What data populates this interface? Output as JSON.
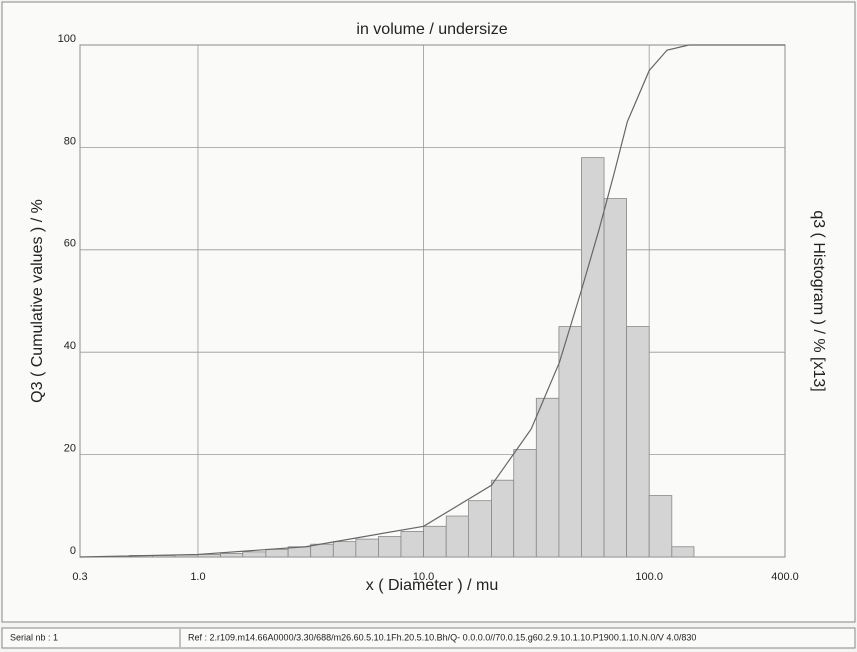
{
  "chart_data": {
    "type": "histogram",
    "title": "in volume / undersize",
    "x_label": "x ( Diameter ) / mu",
    "y_label": "Q3 ( Cumulative values ) / %",
    "y2_label": "q3 ( Histogram ) / % [x13]",
    "log_x": true,
    "grid": true,
    "xlim": [
      0.3,
      400
    ],
    "xticks": [
      0.3,
      {
        "value": 1,
        "label": "1.0"
      },
      {
        "value": 10,
        "label": "10.0"
      },
      {
        "value": 100,
        "label": "100.0"
      },
      {
        "value": 400,
        "label": "400.0"
      }
    ],
    "ylim": [
      0,
      100
    ],
    "yticks": [
      0,
      20,
      40,
      60,
      80,
      100
    ],
    "color": "#d4d4d4",
    "bins": [
      0.5,
      0.63,
      0.79,
      1,
      1.26,
      1.58,
      2,
      2.51,
      3.16,
      3.98,
      5.01,
      6.31,
      7.94,
      10,
      12.6,
      15.8,
      20,
      25.1,
      31.6,
      39.8,
      50.1,
      63.1,
      79.4,
      100,
      126,
      158
    ],
    "counts": [
      0.3,
      0.3,
      0.4,
      0.5,
      0.7,
      1,
      1.5,
      2,
      2.5,
      3,
      3.5,
      4,
      5,
      6,
      8,
      11,
      15,
      21,
      31,
      45,
      78,
      70,
      45,
      12,
      2
    ],
    "cumulative": {
      "color": "#666666",
      "x": [
        0.3,
        1,
        3,
        10,
        20,
        30,
        40,
        50,
        60,
        70,
        80,
        100,
        120,
        150,
        400
      ],
      "values": [
        0,
        0.5,
        2,
        6,
        14,
        25,
        38,
        52,
        64,
        75,
        85,
        95,
        99,
        100,
        100
      ]
    },
    "footer": {
      "serial": "Serial nb : 1",
      "ref": "Ref : 2.r109.m14.66A0000/3.30/688/m26.60.5.10.1Fh.20.5.10.Bh/Q- 0.0.0.0//70.0.15.g60.2.9.10.1.10.P1900.1.10.N.0/V 4.0/830"
    }
  }
}
